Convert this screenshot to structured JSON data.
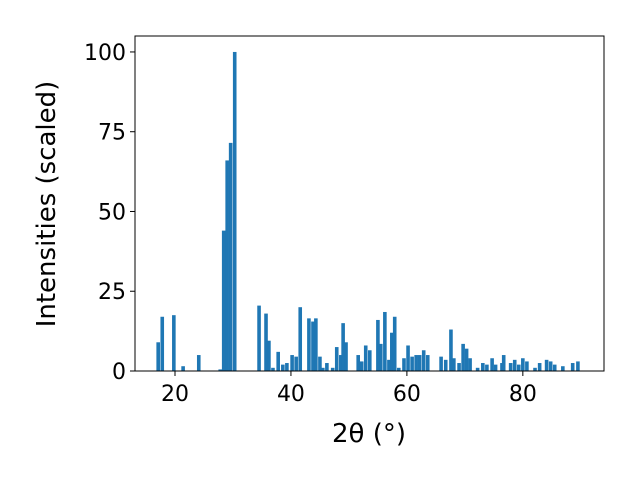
{
  "chart_data": {
    "type": "bar",
    "xlabel": "2θ (°)",
    "ylabel": "Intensities (scaled)",
    "color": "#1f77b4",
    "x": [
      17.1,
      17.8,
      19.8,
      21.4,
      24.1,
      27.8,
      28.4,
      29.0,
      29.6,
      30.3,
      34.5,
      35.7,
      36.2,
      36.9,
      37.8,
      38.6,
      39.3,
      40.2,
      40.9,
      41.6,
      43.1,
      43.8,
      44.3,
      45.0,
      45.5,
      46.2,
      47.2,
      47.9,
      48.6,
      49.0,
      49.5,
      51.6,
      52.2,
      52.9,
      53.6,
      55.0,
      55.5,
      56.2,
      56.9,
      57.4,
      57.9,
      58.6,
      59.5,
      60.2,
      60.9,
      61.6,
      62.2,
      62.9,
      63.6,
      65.9,
      66.7,
      67.6,
      68.1,
      69.0,
      69.7,
      70.3,
      70.9,
      72.2,
      73.1,
      73.8,
      74.7,
      75.3,
      76.4,
      76.7,
      77.9,
      78.6,
      79.3,
      80.0,
      80.7,
      82.1,
      82.9,
      84.1,
      84.8,
      85.5,
      86.9,
      88.6,
      89.5
    ],
    "values": [
      9,
      17,
      17.5,
      1.5,
      5,
      0.5,
      44,
      66,
      71.5,
      100,
      20.5,
      18,
      9.5,
      1,
      6,
      2,
      2.5,
      5,
      4.5,
      20,
      16.5,
      15.5,
      16.5,
      4.5,
      1,
      2.5,
      1,
      7.5,
      5,
      15,
      9,
      5,
      3,
      8,
      6.5,
      16,
      8.5,
      18.5,
      3.5,
      12,
      17,
      1,
      4,
      8,
      4.5,
      5,
      5,
      6.5,
      5,
      4.5,
      3.5,
      13,
      4,
      2.5,
      8.5,
      7,
      4,
      1,
      2.5,
      2,
      4,
      2,
      2.5,
      5,
      2.5,
      3.5,
      2,
      4,
      3,
      1,
      2.5,
      3.5,
      3,
      2,
      1.5,
      2.5,
      3
    ],
    "xlim": [
      13.1,
      94.0
    ],
    "xticks": [
      20,
      40,
      60,
      80
    ],
    "ylim": [
      0,
      105
    ],
    "yticks": [
      0,
      25,
      50,
      75,
      100
    ]
  }
}
